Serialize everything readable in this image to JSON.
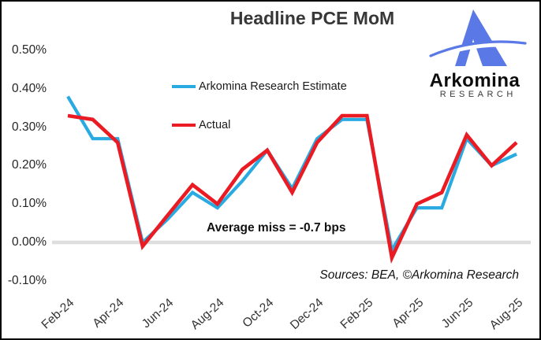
{
  "title": "Headline PCE MoM",
  "legend": [
    {
      "label": "Arkomina Research Estimate",
      "color": "#29ABE2"
    },
    {
      "label": "Actual",
      "color": "#EA1B22"
    }
  ],
  "annotation": "Average miss = -0.7 bps",
  "source_note": "Sources: BEA, ©Arkomina Research",
  "logo": {
    "brand": "Arkomina",
    "sub": "RESEARCH",
    "mark_color": "#5B79E6",
    "mark": "triangle-a-with-swoosh"
  },
  "colors": {
    "estimate_line": "#29ABE2",
    "actual_line": "#EA1B22",
    "zero_line": "#DEDEDE",
    "text": "#373737"
  },
  "chart_data": {
    "type": "line",
    "title": "Headline PCE MoM",
    "units": "% month-over-month",
    "x": [
      "Feb-24",
      "Mar-24",
      "Apr-24",
      "May-24",
      "Jun-24",
      "Jul-24",
      "Aug-24",
      "Sep-24",
      "Oct-24",
      "Nov-24",
      "Dec-24",
      "Jan-25",
      "Feb-25",
      "Mar-25",
      "Apr-25",
      "May-25",
      "Jun-25",
      "Jul-25",
      "Aug-25"
    ],
    "series": [
      {
        "name": "Arkomina Research Estimate",
        "color": "#29ABE2",
        "values": [
          0.38,
          0.27,
          0.27,
          0.0,
          0.06,
          0.13,
          0.09,
          0.16,
          0.24,
          0.14,
          0.27,
          0.32,
          0.32,
          -0.02,
          0.09,
          0.09,
          0.27,
          0.2,
          0.23
        ]
      },
      {
        "name": "Actual",
        "color": "#EA1B22",
        "values": [
          0.33,
          0.32,
          0.26,
          -0.01,
          0.07,
          0.15,
          0.1,
          0.19,
          0.24,
          0.13,
          0.26,
          0.33,
          0.33,
          -0.04,
          0.1,
          0.13,
          0.28,
          0.2,
          0.26
        ]
      }
    ],
    "ylim": [
      -0.15,
      0.55
    ],
    "y_ticks": [
      {
        "value": 0.5,
        "label": "0.50%"
      },
      {
        "value": 0.4,
        "label": "0.40%"
      },
      {
        "value": 0.3,
        "label": "0.30%"
      },
      {
        "value": 0.2,
        "label": "0.20%"
      },
      {
        "value": 0.1,
        "label": "0.10%"
      },
      {
        "value": 0.0,
        "label": "0.00%"
      },
      {
        "value": -0.1,
        "label": "-0.10%"
      }
    ],
    "x_ticks": [
      {
        "index": 0,
        "label": "Feb-24"
      },
      {
        "index": 2,
        "label": "Apr-24"
      },
      {
        "index": 4,
        "label": "Jun-24"
      },
      {
        "index": 6,
        "label": "Aug-24"
      },
      {
        "index": 8,
        "label": "Oct-24"
      },
      {
        "index": 10,
        "label": "Dec-24"
      },
      {
        "index": 12,
        "label": "Feb-25"
      },
      {
        "index": 14,
        "label": "Apr-25"
      },
      {
        "index": 16,
        "label": "Jun-25"
      },
      {
        "index": 18,
        "label": "Aug-25"
      }
    ],
    "zero_line": true,
    "grid": false,
    "legend_position": "upper-left-inside"
  }
}
